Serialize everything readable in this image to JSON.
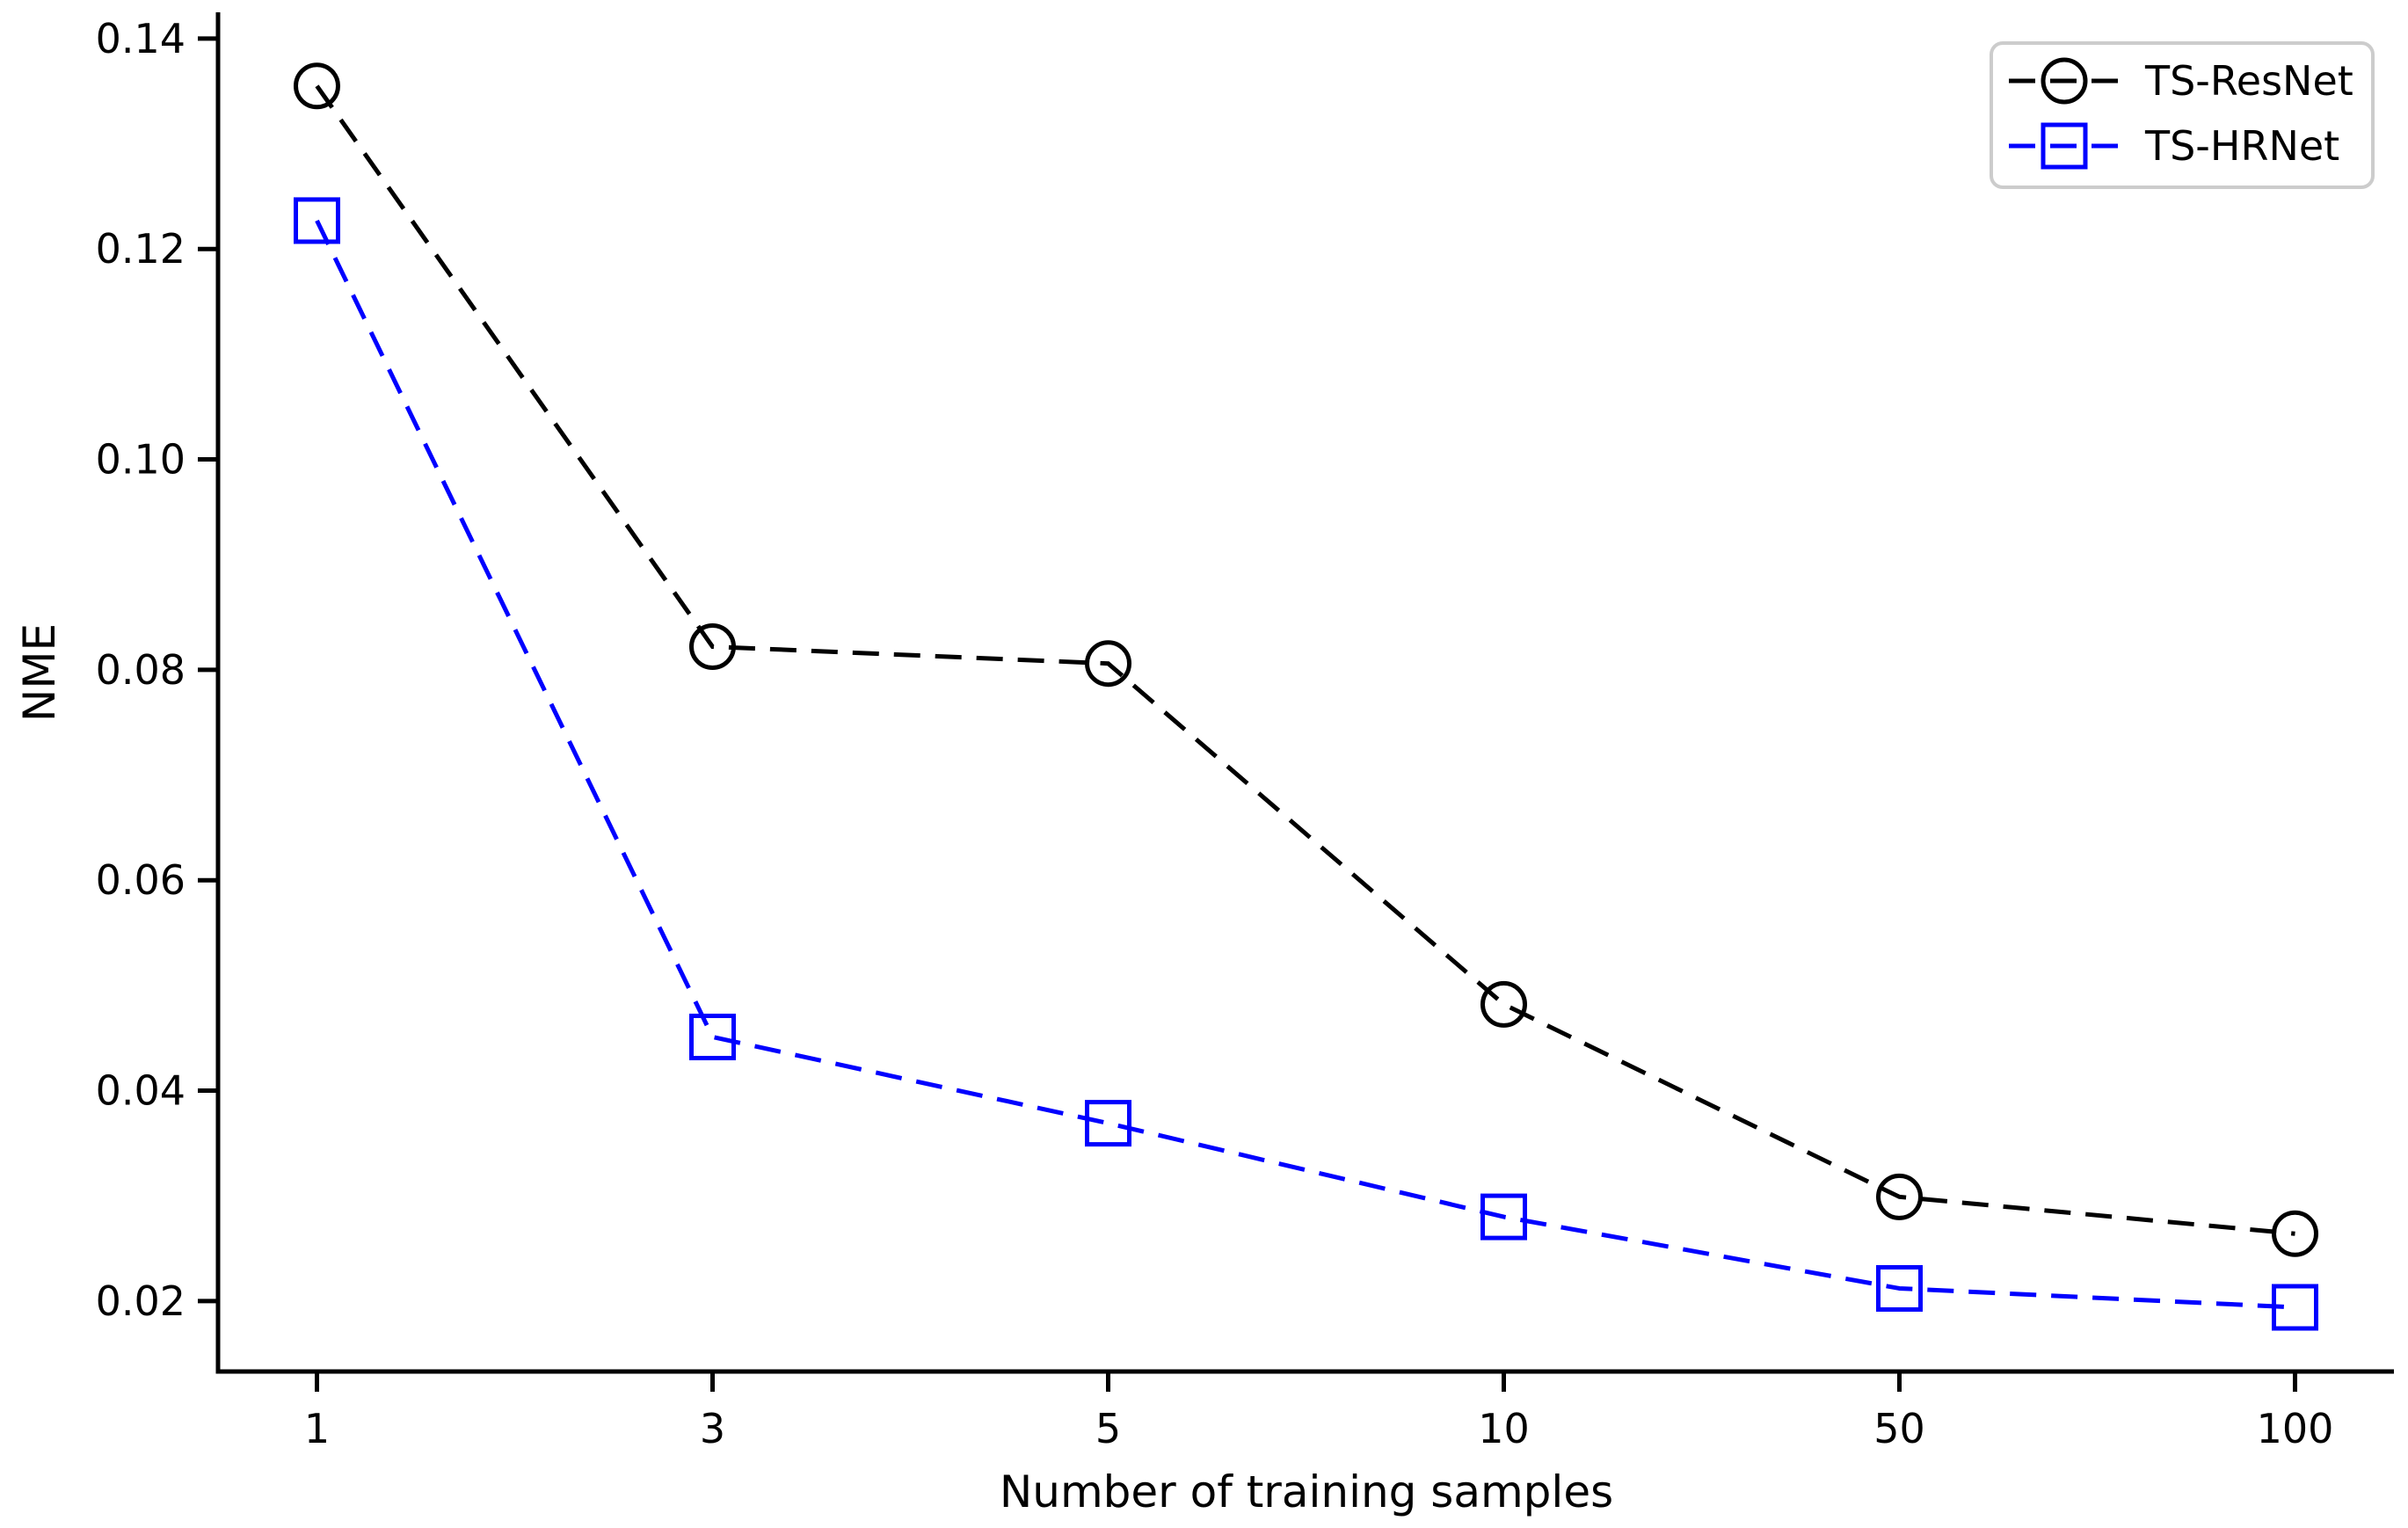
{
  "chart_data": {
    "type": "line",
    "title": "",
    "xlabel": "Number of training samples",
    "ylabel": "NME",
    "categories": [
      "1",
      "3",
      "5",
      "10",
      "50",
      "100"
    ],
    "series": [
      {
        "name": "TS-ResNet",
        "color": "#000000",
        "marker": "circle",
        "linestyle": "dashed",
        "values": [
          0.1355,
          0.0822,
          0.0806,
          0.0482,
          0.0299,
          0.0264
        ]
      },
      {
        "name": "TS-HRNet",
        "color": "#0000ff",
        "marker": "square",
        "linestyle": "dashed",
        "values": [
          0.1227,
          0.0451,
          0.0369,
          0.028,
          0.0212,
          0.0194
        ]
      }
    ],
    "ytick_labels": [
      "0.02",
      "0.04",
      "0.06",
      "0.08",
      "0.10",
      "0.12",
      "0.14"
    ],
    "ytick_values": [
      0.02,
      0.04,
      0.06,
      0.08,
      0.1,
      0.12,
      0.14
    ],
    "ylim": [
      0.0133,
      0.1425
    ],
    "grid": false,
    "legend": {
      "position": "upper right",
      "entries": [
        "TS-ResNet",
        "TS-HRNet"
      ],
      "border_color": "#cccccc",
      "background": "#ffffff"
    }
  },
  "colors": {
    "background": "#ffffff",
    "axis": "#000000"
  }
}
